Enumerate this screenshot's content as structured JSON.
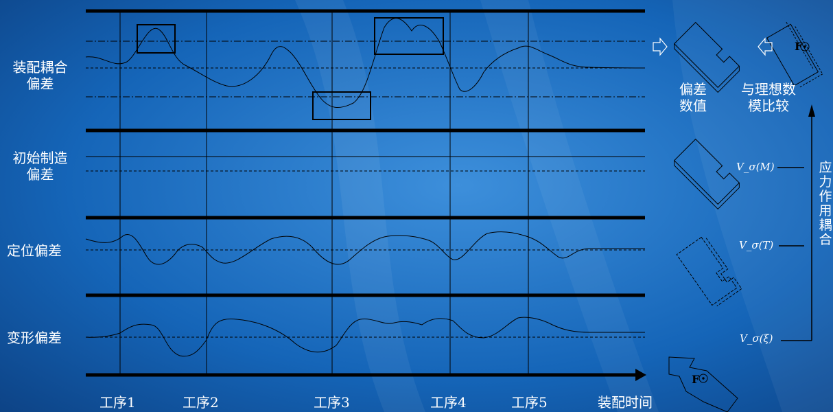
{
  "colors": {
    "bg_dark": "#0b3b7a",
    "bg_mid": "#1565b8",
    "bg_light": "#3d8fdb",
    "ink": "#000000",
    "text": "#ffffff"
  },
  "rows": [
    {
      "label_line1": "装配耦合",
      "label_line2": "偏差"
    },
    {
      "label_line1": "初始制造",
      "label_line2": "偏差"
    },
    {
      "label_line1": "定位偏差",
      "label_line2": ""
    },
    {
      "label_line1": "变形偏差",
      "label_line2": ""
    }
  ],
  "process_steps": [
    "工序1",
    "工序2",
    "工序3",
    "工序4",
    "工序5"
  ],
  "time_axis_label": "装配时间",
  "right_panel": {
    "deviation_value": [
      "偏差",
      "数值"
    ],
    "compare_ideal": [
      "与理想数",
      "模比较"
    ],
    "force_label": "F",
    "stress_vertical": "应力作用耦合",
    "v_labels": [
      "V_σ(M)",
      "V_σ(T)",
      "V_σ(ξ)"
    ]
  }
}
